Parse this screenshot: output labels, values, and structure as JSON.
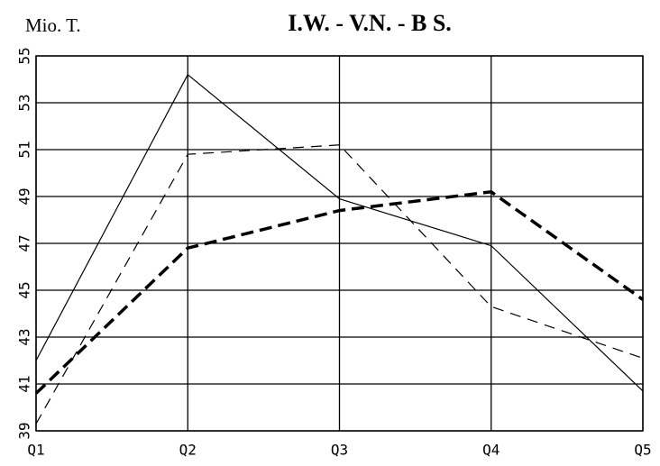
{
  "chart_data": {
    "type": "line",
    "title": "I.W. - V.N. - B S.",
    "y_label": "Mio. T.",
    "categories": [
      "Q1",
      "Q2",
      "Q3",
      "Q4",
      "Q5"
    ],
    "series": [
      {
        "color": "#000000",
        "dash": "solid",
        "width": 1.2,
        "values": [
          42.0,
          54.2,
          48.9,
          46.9,
          40.7
        ]
      },
      {
        "color": "#000000",
        "dash": "dashed",
        "width": 1.2,
        "values": [
          39.3,
          50.8,
          51.2,
          44.3,
          42.1
        ]
      },
      {
        "color": "#000000",
        "dash": "dashed",
        "width": 3.5,
        "values": [
          40.6,
          46.8,
          48.4,
          49.2,
          44.6
        ]
      }
    ],
    "ylim": [
      39,
      55
    ],
    "yticks": [
      39,
      41,
      43,
      45,
      47,
      49,
      51,
      53,
      55
    ],
    "grid": true
  }
}
